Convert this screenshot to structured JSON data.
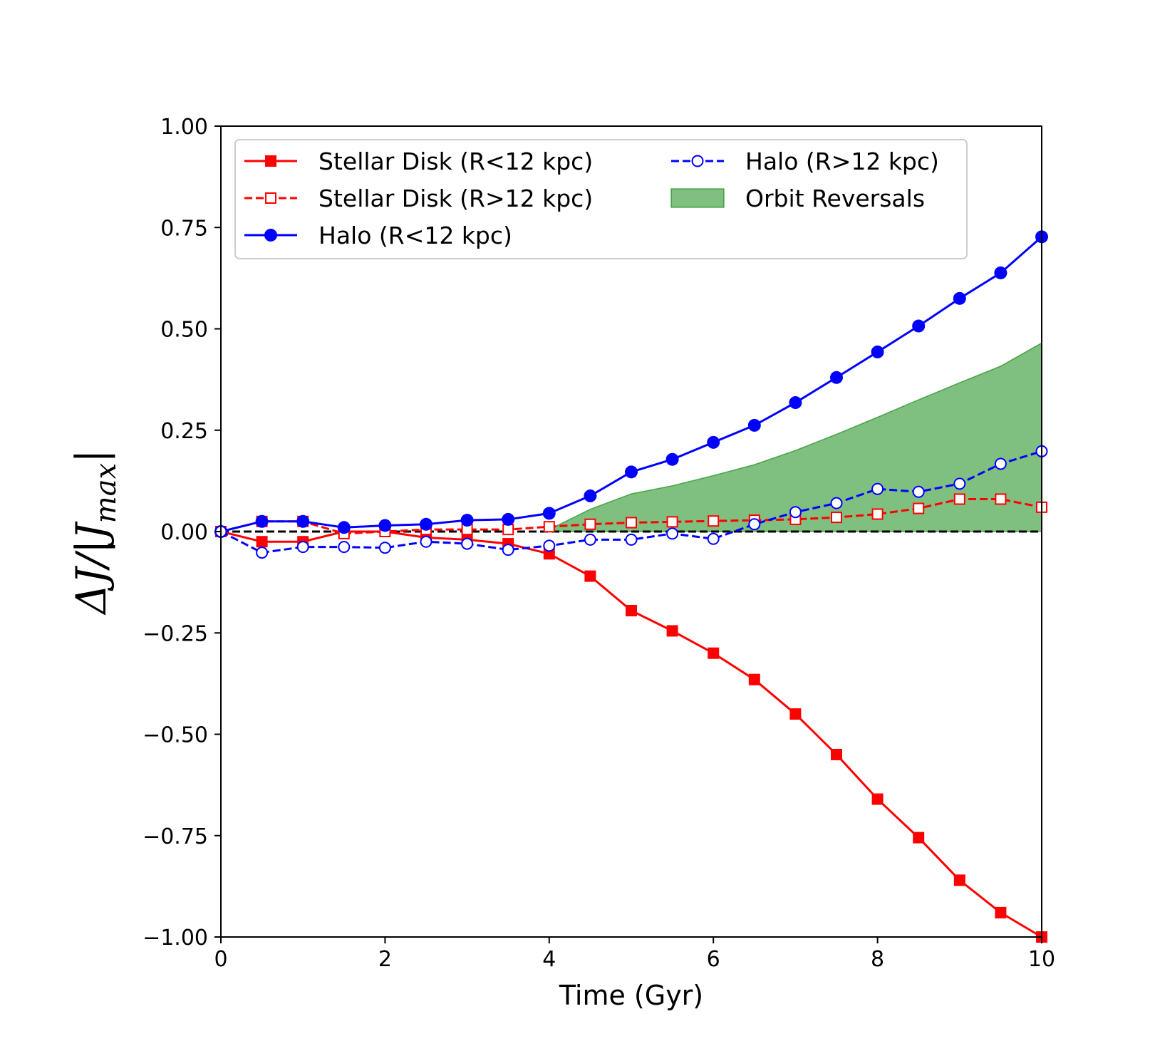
{
  "chart_data": {
    "type": "line",
    "xlabel": "Time (Gyr)",
    "ylabel": "ΔJ/|J",
    "ylabel_subscript": "max",
    "ylabel_tail": "|",
    "xlim": [
      0,
      10
    ],
    "ylim": [
      -1.0,
      1.0
    ],
    "xticks": [
      0,
      2,
      4,
      6,
      8,
      10
    ],
    "xtick_labels": [
      "0",
      "2",
      "4",
      "6",
      "8",
      "10"
    ],
    "yticks": [
      1.0,
      0.75,
      0.5,
      0.25,
      0.0,
      -0.25,
      -0.5,
      -0.75,
      -1.0
    ],
    "ytick_labels": [
      "1.00",
      "0.75",
      "0.50",
      "0.25",
      "0.00",
      "−0.25",
      "−0.50",
      "−0.75",
      "−1.00"
    ],
    "grid": false,
    "legend_position": "top-left",
    "reference_line": {
      "y": 0,
      "color": "#000000",
      "style": "dashed"
    },
    "series": [
      {
        "name": "Stellar Disk (R<12 kpc)",
        "color": "#ff0000",
        "line": "solid",
        "marker": "square-filled",
        "x": [
          0,
          0.5,
          1,
          1.5,
          2,
          2.5,
          3,
          3.5,
          4,
          4.5,
          5,
          5.5,
          6,
          6.5,
          7,
          7.5,
          8,
          8.5,
          9,
          9.5,
          10
        ],
        "y": [
          0.0,
          -0.025,
          -0.025,
          0.0,
          0.0,
          -0.015,
          -0.02,
          -0.03,
          -0.055,
          -0.11,
          -0.195,
          -0.245,
          -0.3,
          -0.365,
          -0.45,
          -0.55,
          -0.66,
          -0.755,
          -0.86,
          -0.94,
          -1.0
        ]
      },
      {
        "name": "Stellar Disk (R>12 kpc)",
        "color": "#ff0000",
        "line": "dashed",
        "marker": "square-open",
        "x": [
          0,
          0.5,
          1,
          1.5,
          2,
          2.5,
          3,
          3.5,
          4,
          4.5,
          5,
          5.5,
          6,
          6.5,
          7,
          7.5,
          8,
          8.5,
          9,
          9.5,
          10
        ],
        "y": [
          0.0,
          0.025,
          0.025,
          -0.005,
          0.0,
          0.005,
          0.005,
          0.005,
          0.012,
          0.018,
          0.022,
          0.024,
          0.026,
          0.028,
          0.03,
          0.035,
          0.043,
          0.057,
          0.08,
          0.08,
          0.06
        ]
      },
      {
        "name": "Halo (R<12 kpc)",
        "color": "#0000ff",
        "line": "solid",
        "marker": "circle-filled",
        "x": [
          0,
          0.5,
          1,
          1.5,
          2,
          2.5,
          3,
          3.5,
          4,
          4.5,
          5,
          5.5,
          6,
          6.5,
          7,
          7.5,
          8,
          8.5,
          9,
          9.5,
          10
        ],
        "y": [
          0.0,
          0.025,
          0.025,
          0.01,
          0.015,
          0.018,
          0.028,
          0.03,
          0.045,
          0.088,
          0.147,
          0.178,
          0.22,
          0.262,
          0.318,
          0.38,
          0.443,
          0.507,
          0.575,
          0.638,
          0.727
        ]
      },
      {
        "name": "Halo (R>12 kpc)",
        "color": "#0000ff",
        "line": "dashed",
        "marker": "circle-open",
        "x": [
          0,
          0.5,
          1,
          1.5,
          2,
          2.5,
          3,
          3.5,
          4,
          4.5,
          5,
          5.5,
          6,
          6.5,
          7,
          7.5,
          8,
          8.5,
          9,
          9.5,
          10
        ],
        "y": [
          0.0,
          -0.052,
          -0.038,
          -0.038,
          -0.04,
          -0.025,
          -0.03,
          -0.045,
          -0.035,
          -0.02,
          -0.02,
          -0.005,
          -0.018,
          0.018,
          0.048,
          0.07,
          0.105,
          0.098,
          0.118,
          0.167,
          0.198
        ]
      }
    ],
    "areas": [
      {
        "name": "Orbit Reversals",
        "color": "#008000",
        "opacity": 0.5,
        "x": [
          4,
          4.5,
          5,
          5.5,
          6,
          6.5,
          7,
          7.5,
          8,
          8.5,
          9,
          9.5,
          10
        ],
        "y_low": [
          0,
          0,
          0,
          0,
          0,
          0,
          0,
          0,
          0,
          0,
          0,
          0,
          0
        ],
        "y_high": [
          0.005,
          0.055,
          0.093,
          0.113,
          0.138,
          0.165,
          0.2,
          0.24,
          0.282,
          0.325,
          0.367,
          0.408,
          0.465
        ]
      }
    ],
    "legend_order": [
      {
        "name": "Stellar Disk (R<12 kpc)",
        "kind": "series",
        "index": 0
      },
      {
        "name": "Stellar Disk (R>12 kpc)",
        "kind": "series",
        "index": 1
      },
      {
        "name": "Halo (R<12 kpc)",
        "kind": "series",
        "index": 2
      },
      {
        "name": "Halo (R>12 kpc)",
        "kind": "series",
        "index": 3
      },
      {
        "name": "Orbit Reversals",
        "kind": "area",
        "index": 0
      }
    ]
  }
}
